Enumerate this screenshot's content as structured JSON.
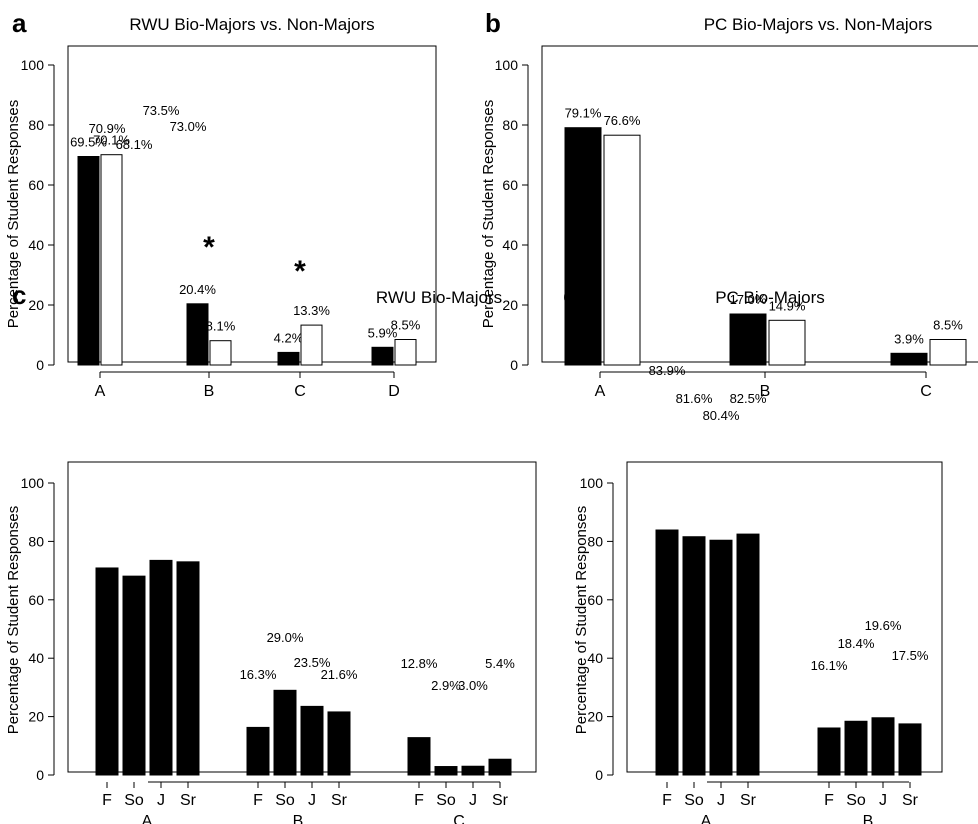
{
  "colors": {
    "filled": "#000000",
    "open": "#ffffff",
    "stroke": "#000000"
  },
  "chart_data": [
    {
      "panel": "a",
      "type": "bar",
      "title": "RWU Bio-Majors vs. Non-Majors",
      "ylabel": "Percentage of Student Responses",
      "ylim": [
        0,
        100
      ],
      "yticks": [
        "0",
        "20",
        "40",
        "60",
        "80",
        "100"
      ],
      "categories": [
        "A",
        "B",
        "C",
        "D"
      ],
      "series": [
        {
          "fill": "filled",
          "values": [
            69.5,
            20.4,
            4.2,
            5.9
          ],
          "labels": [
            "69.5%",
            "20.4%",
            "4.2%",
            "5.9%"
          ]
        },
        {
          "fill": "open",
          "values": [
            70.1,
            8.1,
            13.3,
            8.5
          ],
          "labels": [
            "70.1%",
            "8.1%",
            "13.3%",
            "8.5%"
          ]
        }
      ],
      "annotations": [
        {
          "text": "*",
          "category": "B",
          "y": 40
        },
        {
          "text": "*",
          "category": "C",
          "y": 32
        }
      ]
    },
    {
      "panel": "b",
      "type": "bar",
      "title": "PC Bio-Majors vs. Non-Majors",
      "ylabel": "Percentage of Student Responses",
      "ylim": [
        0,
        100
      ],
      "yticks": [
        "0",
        "20",
        "40",
        "60",
        "80",
        "100"
      ],
      "categories": [
        "A",
        "B",
        "C"
      ],
      "series": [
        {
          "fill": "filled",
          "values": [
            79.1,
            17.0,
            3.9
          ],
          "labels": [
            "79.1%",
            "17.0%",
            "3.9%"
          ]
        },
        {
          "fill": "open",
          "values": [
            76.6,
            14.9,
            8.5
          ],
          "labels": [
            "76.6%",
            "14.9%",
            "8.5%"
          ]
        }
      ],
      "annotations": []
    },
    {
      "panel": "c",
      "type": "bar",
      "title": "RWU Bio-Majors",
      "ylabel": "Percentage of Student Responses",
      "ylim": [
        0,
        100
      ],
      "yticks": [
        "0",
        "20",
        "40",
        "60",
        "80",
        "100"
      ],
      "categories": [
        "A",
        "B",
        "C"
      ],
      "subcategories": [
        "F",
        "So",
        "J",
        "Sr"
      ],
      "groups": [
        {
          "values": [
            70.9,
            68.1,
            73.5,
            73.0
          ],
          "labels": [
            "70.9%",
            "68.1%",
            "73.5%",
            "73.0%"
          ]
        },
        {
          "values": [
            16.3,
            29.0,
            23.5,
            21.6
          ],
          "labels": [
            "16.3%",
            "29.0%",
            "23.5%",
            "21.6%"
          ]
        },
        {
          "values": [
            12.8,
            2.9,
            3.0,
            5.4
          ],
          "labels": [
            "12.8%",
            "2.9%",
            "3.0%",
            "5.4%"
          ]
        }
      ]
    },
    {
      "panel": "d",
      "type": "bar",
      "title": "PC Bio-Majors",
      "ylabel": "Percentage of Student Responses",
      "ylim": [
        0,
        100
      ],
      "yticks": [
        "0",
        "20",
        "40",
        "60",
        "80",
        "100"
      ],
      "categories": [
        "A",
        "B"
      ],
      "subcategories": [
        "F",
        "So",
        "J",
        "Sr"
      ],
      "groups": [
        {
          "values": [
            83.9,
            81.6,
            80.4,
            82.5
          ],
          "labels": [
            "83.9%",
            "81.6%",
            "80.4%",
            "82.5%"
          ]
        },
        {
          "values": [
            16.1,
            18.4,
            19.6,
            17.5
          ],
          "labels": [
            "16.1%",
            "18.4%",
            "19.6%",
            "17.5%"
          ]
        }
      ]
    }
  ]
}
